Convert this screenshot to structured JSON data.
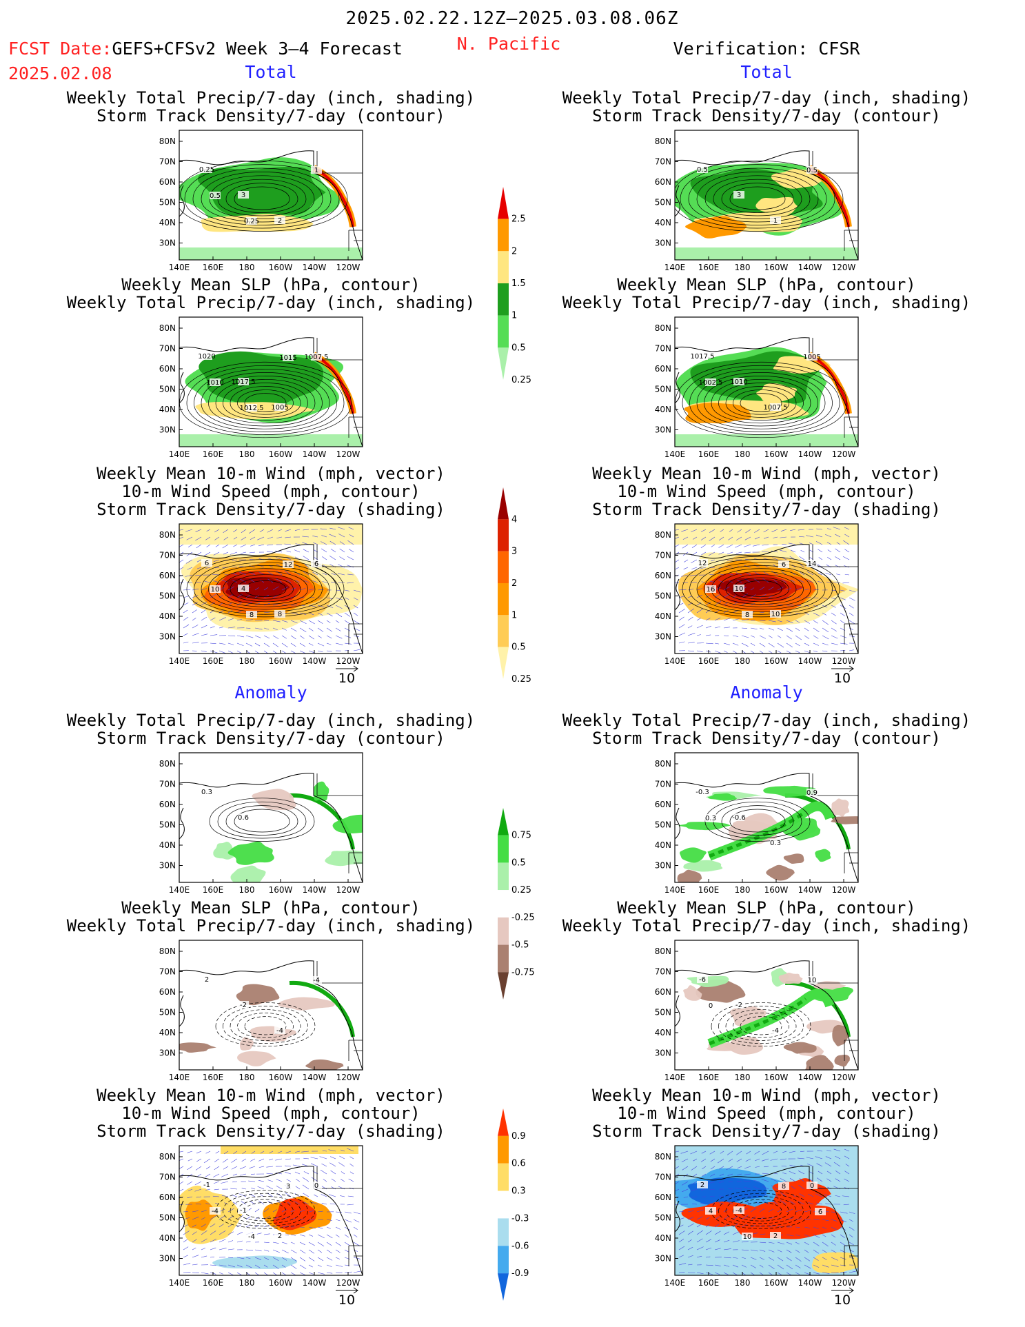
{
  "header": {
    "period": "2025.02.22.12Z–2025.03.08.06Z",
    "fcst_prefix": "FCST Date:",
    "fcst_model": "GEFS+CFSv2 Week 3–4 Forecast",
    "fcst_date": "2025.02.08",
    "region": "N. Pacific",
    "verification": "Verification: CFSR"
  },
  "sections": {
    "left_total": "Total",
    "right_total": "Total",
    "left_anom": "Anomaly",
    "right_anom": "Anomaly"
  },
  "titles": {
    "precip_track": [
      "Weekly Total Precip/7-day (inch, shading)",
      "Storm Track Density/7-day (contour)"
    ],
    "slp_precip": [
      "Weekly Mean SLP (hPa, contour)",
      "Weekly Total Precip/7-day (inch, shading)"
    ],
    "wind_track": [
      "Weekly Mean 10-m Wind (mph, vector)",
      "10-m Wind Speed (mph, contour)",
      "Storm Track Density/7-day (shading)"
    ]
  },
  "axes": {
    "lat_labels": [
      "80N",
      "70N",
      "60N",
      "50N",
      "40N",
      "30N"
    ],
    "lon_labels": [
      "140E",
      "160E",
      "180",
      "160W",
      "140W",
      "120W"
    ]
  },
  "vector_scale": "10",
  "colorbars": [
    {
      "labels": [
        "2.5",
        "2",
        "1.5",
        "1",
        "0.5",
        "0.25"
      ],
      "colors": [
        "#e60000",
        "#ff9900",
        "#ffe680",
        "#1e9e1e",
        "#55dd55",
        "#aaf0aa"
      ]
    },
    {
      "labels": [
        "4",
        "3",
        "2",
        "1",
        "0.5",
        "0.25"
      ],
      "colors": [
        "#990000",
        "#dd2200",
        "#ff6600",
        "#ff9900",
        "#ffcc55",
        "#fff2aa"
      ]
    },
    {
      "labels": [
        "0.75",
        "0.5",
        "0.25",
        "-0.25",
        "-0.5",
        "-0.75"
      ],
      "colors": [
        "#11aa11",
        "#44dd44",
        "#aaf0aa",
        "#ffffff",
        "#e6c8c0",
        "#aa8070",
        "#6a4030"
      ]
    },
    {
      "labels": [
        "0.9",
        "0.6",
        "0.3",
        "-0.3",
        "-0.6",
        "-0.9"
      ],
      "colors": [
        "#ff3300",
        "#ff9900",
        "#ffdd66",
        "#ffffff",
        "#aaddee",
        "#44aaee",
        "#1166dd"
      ]
    }
  ],
  "panels": {
    "p1": {
      "labels": [
        "0.25",
        "3",
        "2",
        "1",
        "0.5",
        "0.25"
      ]
    },
    "p2": {
      "labels": [
        "0.5",
        "3",
        "1",
        "0.5"
      ]
    },
    "p3": {
      "labels": [
        "1020",
        "1017.5",
        "1005",
        "1007.5",
        "1010",
        "1012.5",
        "1015"
      ]
    },
    "p4": {
      "labels": [
        "1017.5",
        "1010",
        "1007.5",
        "1005",
        "1002.5"
      ]
    },
    "p5": {
      "labels": [
        "6",
        "4",
        "8",
        "6",
        "10",
        "8",
        "12"
      ]
    },
    "p6": {
      "labels": [
        "12",
        "10",
        "10",
        "14",
        "16",
        "8",
        "6"
      ]
    },
    "p7": {
      "labels": [
        "0.3",
        "0.6"
      ]
    },
    "p8": {
      "labels": [
        "-0.3",
        "-0.6",
        "0.3",
        "0.9",
        "0.3"
      ]
    },
    "p9": {
      "labels": [
        "2",
        "-2",
        "-4",
        "-4"
      ]
    },
    "p10": {
      "labels": [
        "-6",
        "-2",
        "-4",
        "10",
        "0"
      ]
    },
    "p11": {
      "labels": [
        "-1",
        "-1",
        "2",
        "0",
        "-4",
        "-4",
        "3"
      ]
    },
    "p12": {
      "labels": [
        "2",
        "-4",
        "2",
        "0",
        "4",
        "10",
        "8",
        "6"
      ]
    }
  }
}
